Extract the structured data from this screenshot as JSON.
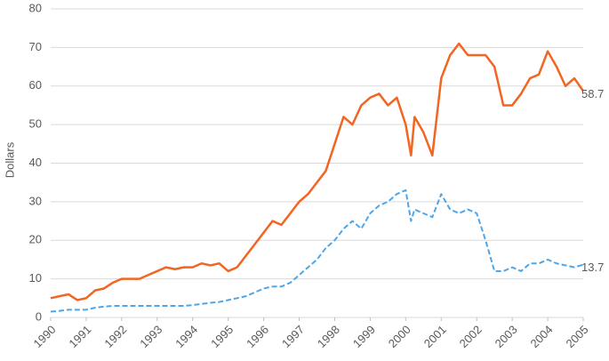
{
  "chart_data": {
    "type": "line",
    "ylabel": "Dollars",
    "x": [
      1990,
      1990.25,
      1990.5,
      1990.75,
      1991,
      1991.25,
      1991.5,
      1991.75,
      1992,
      1992.25,
      1992.5,
      1992.75,
      1993,
      1993.25,
      1993.5,
      1993.75,
      1994,
      1994.25,
      1994.5,
      1994.75,
      1995,
      1995.25,
      1995.5,
      1995.75,
      1996,
      1996.25,
      1996.5,
      1996.75,
      1997,
      1997.25,
      1997.5,
      1997.75,
      1998,
      1998.25,
      1998.5,
      1998.75,
      1999,
      1999.25,
      1999.5,
      1999.75,
      2000,
      2000.15,
      2000.25,
      2000.5,
      2000.75,
      2001,
      2001.25,
      2001.5,
      2001.75,
      2002,
      2002.25,
      2002.5,
      2002.75,
      2003,
      2003.25,
      2003.5,
      2003.75,
      2004,
      2004.25,
      2004.5,
      2004.75,
      2005
    ],
    "series": [
      {
        "color": "#f26522",
        "dash": false,
        "values": [
          5,
          5.5,
          6,
          4.5,
          5,
          7,
          7.5,
          9,
          10,
          10,
          10,
          11,
          12,
          13,
          12.5,
          13,
          13,
          14,
          13.5,
          14,
          12,
          13,
          16,
          19,
          22,
          25,
          24,
          27,
          30,
          32,
          35,
          38,
          45,
          52,
          50,
          55,
          57,
          58,
          55,
          57,
          50,
          42,
          52,
          48,
          42,
          62,
          68,
          71,
          68,
          68,
          68,
          65,
          55,
          55,
          58,
          62,
          63,
          69,
          65,
          60,
          62,
          58.7
        ]
      },
      {
        "color": "#4da6e8",
        "dash": true,
        "values": [
          1.5,
          1.7,
          2,
          2,
          2,
          2.5,
          2.8,
          3,
          3,
          3,
          3,
          3,
          3,
          3,
          3,
          3,
          3.2,
          3.5,
          3.8,
          4,
          4.5,
          5,
          5.5,
          6.5,
          7.5,
          8,
          8,
          9,
          11,
          13,
          15,
          18,
          20,
          23,
          25,
          23,
          27,
          29,
          30,
          32,
          33,
          25,
          28,
          27,
          26,
          32,
          28,
          27,
          28,
          27,
          20,
          12,
          12,
          13,
          12,
          14,
          14,
          15,
          14,
          13.5,
          13,
          13.7
        ]
      }
    ],
    "xlim": [
      1990,
      2005
    ],
    "xticks": [
      1990,
      1991,
      1992,
      1993,
      1994,
      1995,
      1996,
      1997,
      1998,
      1999,
      2000,
      2001,
      2002,
      2003,
      2004,
      2005
    ],
    "ylim": [
      0,
      80
    ],
    "yticks": [
      0,
      10,
      20,
      30,
      40,
      50,
      60,
      70,
      80
    ],
    "grid": true
  }
}
